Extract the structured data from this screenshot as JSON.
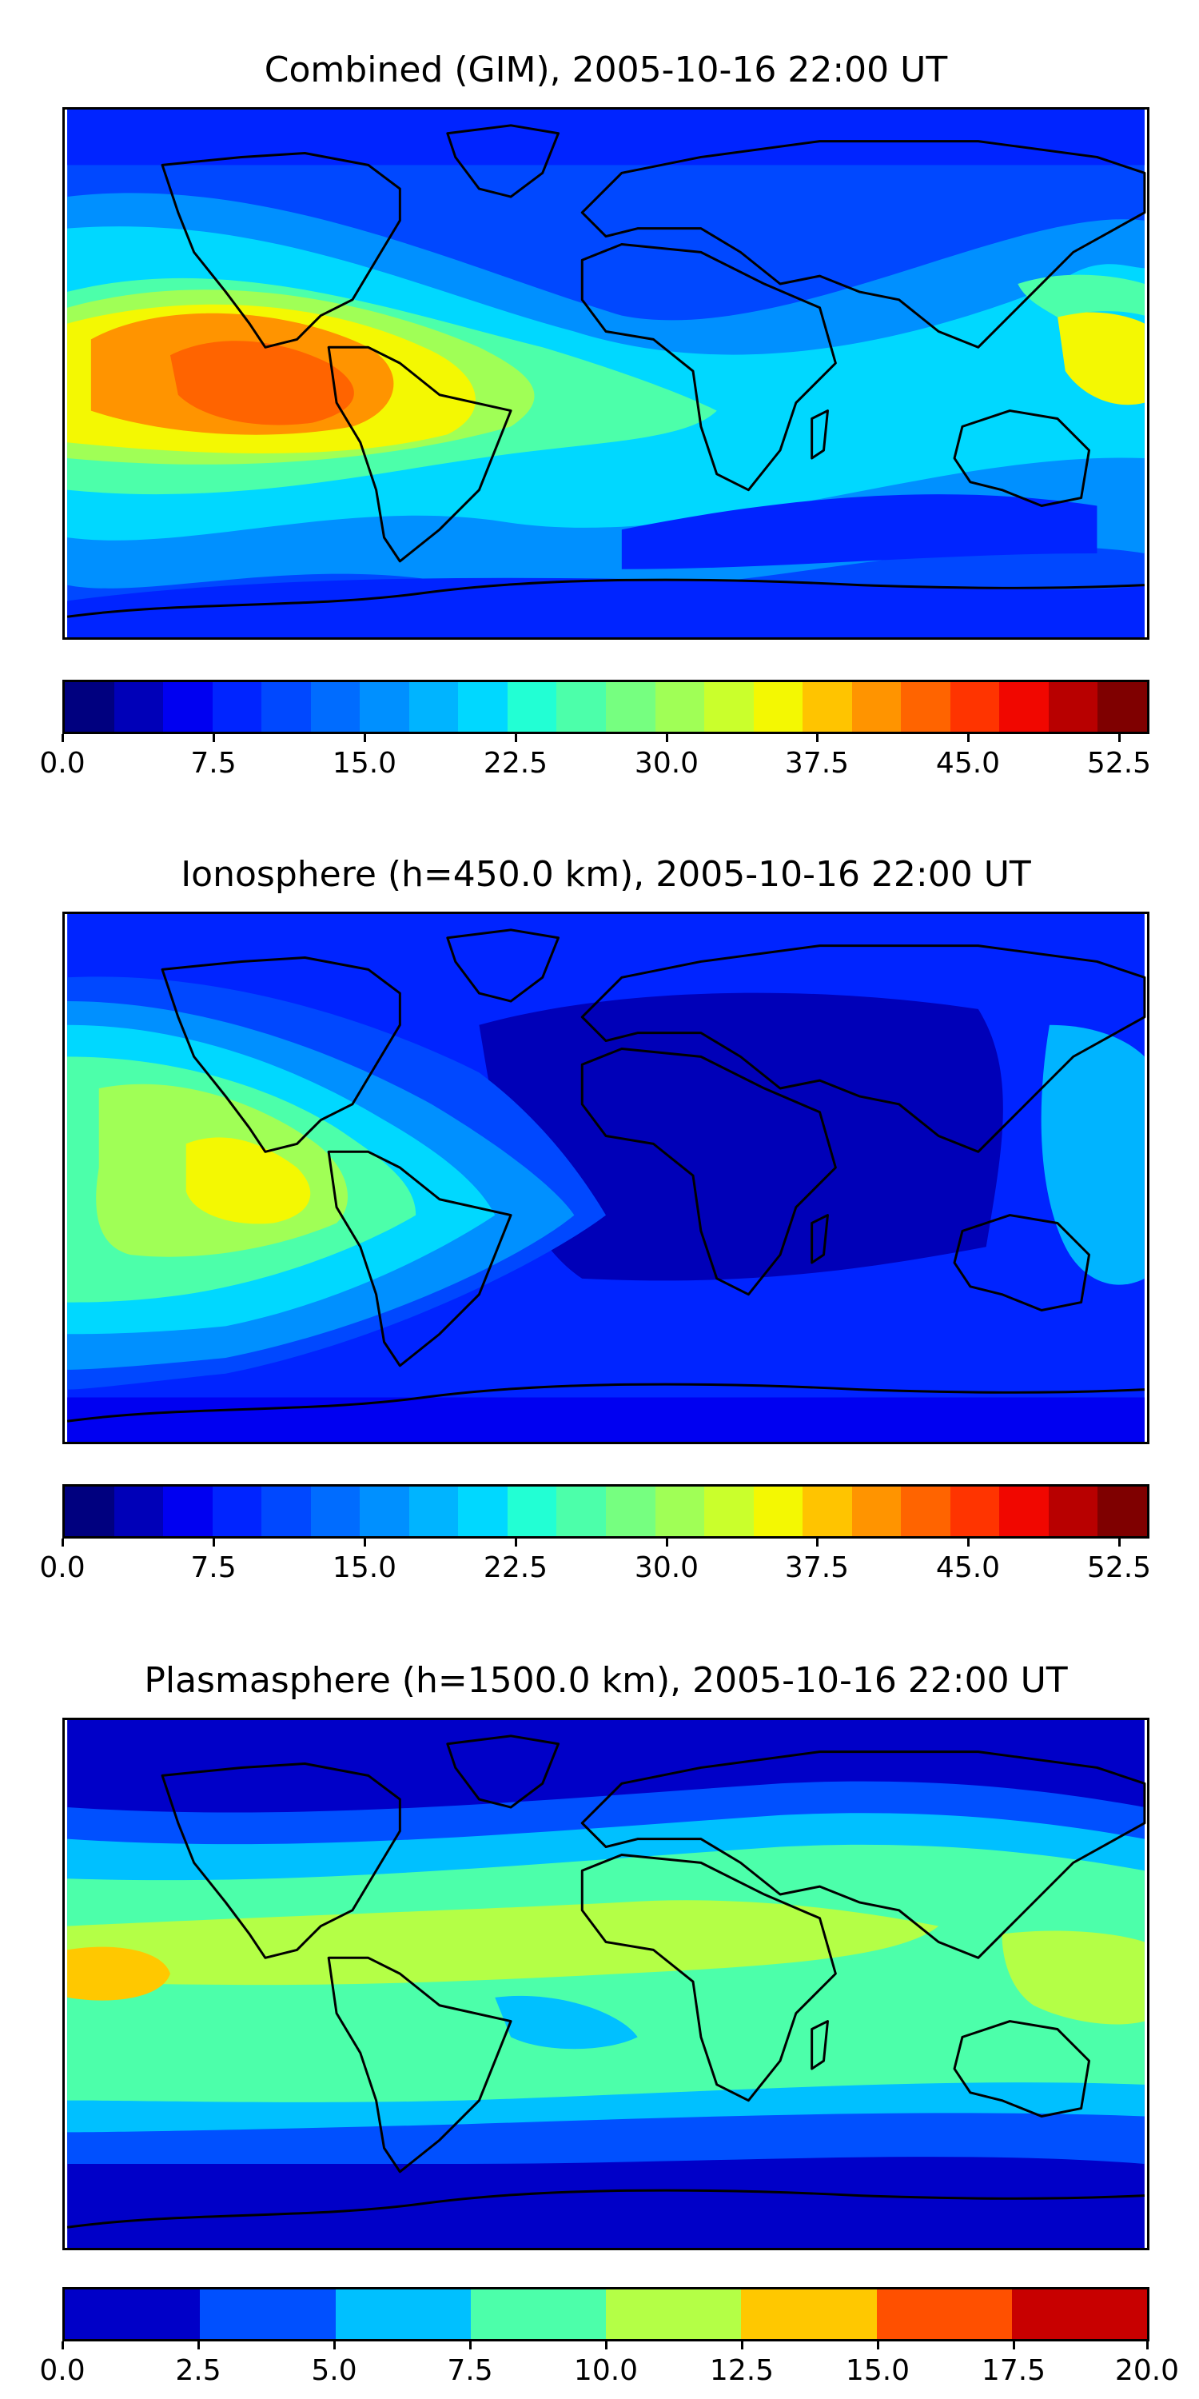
{
  "chart_data": [
    {
      "type": "heatmap",
      "title": "Combined (GIM), 2005-10-16 22:00 UT",
      "colorbar": {
        "ticks": [
          "0.0",
          "7.5",
          "15.0",
          "22.5",
          "30.0",
          "37.5",
          "45.0",
          "52.5"
        ],
        "range": [
          0,
          54
        ],
        "colors": [
          "#00007f",
          "#0000b8",
          "#0000f1",
          "#0024ff",
          "#0048ff",
          "#006cff",
          "#0090ff",
          "#00b4ff",
          "#00d8ff",
          "#22ffd4",
          "#4cffaa",
          "#76ff80",
          "#a0ff56",
          "#caff2c",
          "#f4f802",
          "#ffc400",
          "#ff9400",
          "#ff6400",
          "#ff3400",
          "#f10700",
          "#b80000",
          "#7f0000"
        ]
      }
    },
    {
      "type": "heatmap",
      "title": "Ionosphere  (h=450.0 km), 2005-10-16 22:00 UT",
      "colorbar": {
        "ticks": [
          "0.0",
          "7.5",
          "15.0",
          "22.5",
          "30.0",
          "37.5",
          "45.0",
          "52.5"
        ],
        "range": [
          0,
          54
        ],
        "colors": [
          "#00007f",
          "#0000b8",
          "#0000f1",
          "#0024ff",
          "#0048ff",
          "#006cff",
          "#0090ff",
          "#00b4ff",
          "#00d8ff",
          "#22ffd4",
          "#4cffaa",
          "#76ff80",
          "#a0ff56",
          "#caff2c",
          "#f4f802",
          "#ffc400",
          "#ff9400",
          "#ff6400",
          "#ff3400",
          "#f10700",
          "#b80000",
          "#7f0000"
        ]
      }
    },
    {
      "type": "heatmap",
      "title": "Plasmasphere (h=1500.0 km), 2005-10-16 22:00 UT",
      "colorbar": {
        "ticks": [
          "0.0",
          "2.5",
          "5.0",
          "7.5",
          "10.0",
          "12.5",
          "15.0",
          "17.5",
          "20.0"
        ],
        "range": [
          0,
          20
        ],
        "colors": [
          "#0000c8",
          "#0050ff",
          "#00c0ff",
          "#4cffaa",
          "#b4ff46",
          "#ffc800",
          "#ff5000",
          "#c80000"
        ]
      }
    }
  ]
}
